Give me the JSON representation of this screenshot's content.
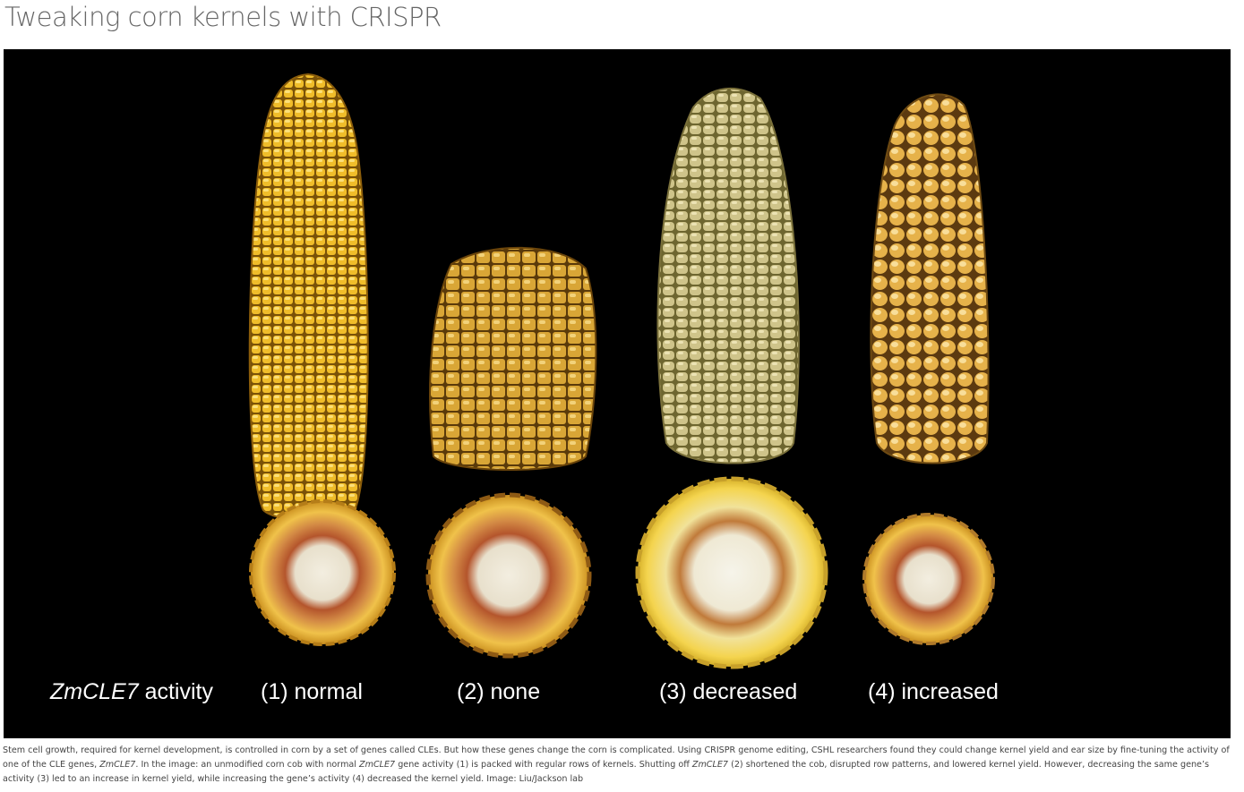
{
  "title": "Tweaking corn kernels with CRISPR",
  "figure": {
    "gene_name": "ZmCLE7",
    "gene_suffix": " activity",
    "labels": [
      "(1) normal",
      "(2) none",
      "(3) decreased",
      "(4) increased"
    ]
  },
  "caption": {
    "p1": "Stem cell growth, required for kernel development, is controlled in corn by a set of genes called CLEs. But how these genes change the corn is complicated. Using CRISPR genome editing, CSHL researchers found they could change kernel yield and ear size by fine-tuning the activity of one of the CLE genes, ",
    "g1": "ZmCLE7",
    "p2": ". In the image: an unmodified corn cob with normal ",
    "g2": "ZmCLE7",
    "p3": " gene activity (1) is packed with regular rows of kernels. Shutting off ",
    "g3": "ZmCLE7",
    "p4": " (2) shortened the cob, disrupted row patterns, and lowered kernel yield. However, decreasing the same gene’s activity (3) led to an increase in kernel yield, while increasing the gene’s activity (4) decreased the kernel yield. Image: Liu/Jackson lab"
  },
  "colors": {
    "background": "#000000",
    "kernel_gold": "#e8b325",
    "kernel_pale": "#d9cf8c",
    "cob_red": "#a8472a"
  }
}
